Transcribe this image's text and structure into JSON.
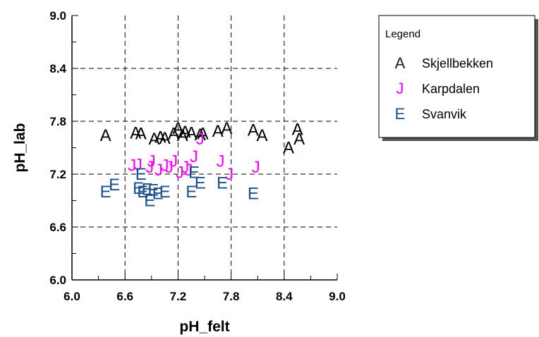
{
  "chart_data": {
    "type": "scatter",
    "title": "",
    "xlabel": "pH_felt",
    "ylabel": "pH_lab",
    "xlim": [
      6.0,
      9.0
    ],
    "ylim": [
      6.0,
      9.0
    ],
    "xticks": [
      "6.0",
      "6.6",
      "7.2",
      "7.8",
      "8.4",
      "9.0"
    ],
    "yticks": [
      "6.0",
      "6.6",
      "7.2",
      "7.8",
      "8.4",
      "9.0"
    ],
    "grid": true,
    "legend": {
      "title": "Legend",
      "position": "right"
    },
    "series": [
      {
        "name": "Skjellbekken",
        "marker": "A",
        "color": "#000000",
        "legend_color": "#3c0a3c",
        "points": [
          [
            6.38,
            7.64
          ],
          [
            6.72,
            7.67
          ],
          [
            6.78,
            7.66
          ],
          [
            6.93,
            7.6
          ],
          [
            7.0,
            7.62
          ],
          [
            7.05,
            7.61
          ],
          [
            7.15,
            7.66
          ],
          [
            7.2,
            7.72
          ],
          [
            7.25,
            7.64
          ],
          [
            7.28,
            7.68
          ],
          [
            7.35,
            7.67
          ],
          [
            7.45,
            7.65
          ],
          [
            7.48,
            7.66
          ],
          [
            7.65,
            7.69
          ],
          [
            7.75,
            7.72
          ],
          [
            8.05,
            7.7
          ],
          [
            8.15,
            7.64
          ],
          [
            8.45,
            7.5
          ],
          [
            8.55,
            7.71
          ],
          [
            8.57,
            7.6
          ]
        ]
      },
      {
        "name": "Karpdalen",
        "marker": "J",
        "color": "#ff00ff",
        "points": [
          [
            6.68,
            7.3
          ],
          [
            6.75,
            7.31
          ],
          [
            6.88,
            7.28
          ],
          [
            6.9,
            7.35
          ],
          [
            6.98,
            7.25
          ],
          [
            7.05,
            7.3
          ],
          [
            7.1,
            7.28
          ],
          [
            7.15,
            7.35
          ],
          [
            7.22,
            7.22
          ],
          [
            7.28,
            7.28
          ],
          [
            7.32,
            7.25
          ],
          [
            7.38,
            7.4
          ],
          [
            7.45,
            7.6
          ],
          [
            7.68,
            7.35
          ],
          [
            7.78,
            7.2
          ],
          [
            8.08,
            7.28
          ]
        ]
      },
      {
        "name": "Svanvik",
        "marker": "E",
        "color": "#1b4f8c",
        "points": [
          [
            6.38,
            7.0
          ],
          [
            6.48,
            7.08
          ],
          [
            6.75,
            7.04
          ],
          [
            6.78,
            7.2
          ],
          [
            6.8,
            7.0
          ],
          [
            6.85,
            7.03
          ],
          [
            6.88,
            6.9
          ],
          [
            6.92,
            7.02
          ],
          [
            6.97,
            6.98
          ],
          [
            7.05,
            7.0
          ],
          [
            7.35,
            7.0
          ],
          [
            7.38,
            7.22
          ],
          [
            7.45,
            7.1
          ],
          [
            7.7,
            7.1
          ],
          [
            8.05,
            6.98
          ]
        ]
      }
    ]
  }
}
